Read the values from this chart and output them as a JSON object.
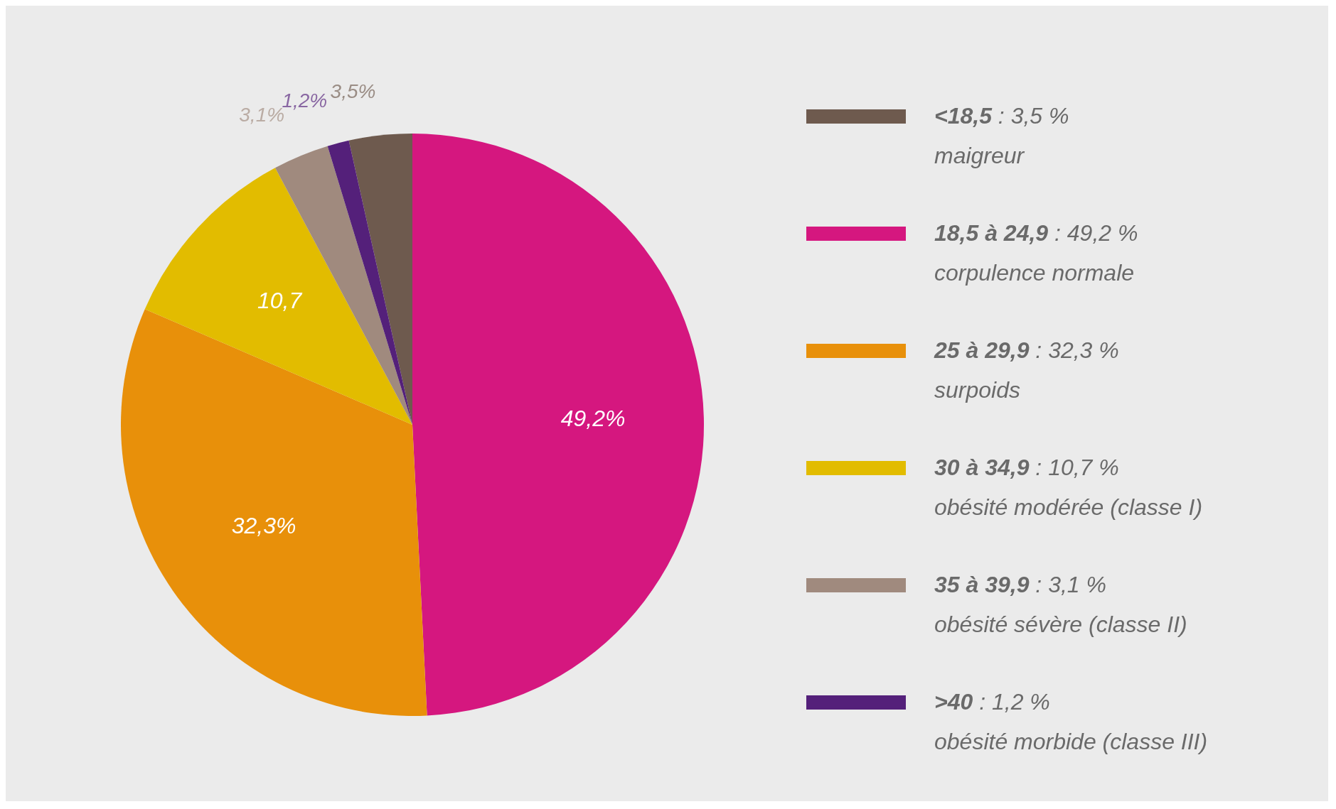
{
  "chart_data": {
    "type": "pie",
    "categories": [
      "<18,5 : 3,5 %\nmaigreur",
      "18,5 à 24,9 : 49,2 %\ncorpulence normale",
      "25 à 29,9 : 32,3 %\nsurpoids",
      "30 à 34,9 : 10,7 %\nobésité modérée (classe I)",
      "35 à 39,9 : 3,1 %\nobésité sévère (classe II)",
      ">40 : 1,2 %\nobésité morbide (classe III)"
    ],
    "values": [
      3.5,
      49.2,
      32.3,
      10.7,
      3.1,
      1.2
    ],
    "colors": [
      "#6e5a4e",
      "#d5177f",
      "#e8900a",
      "#e2bc00",
      "#a08a7e",
      "#54207a"
    ],
    "value_labels": [
      "3,5%",
      "49,2%",
      "32,3%",
      "10,7",
      "3,1%",
      "1,2%"
    ],
    "legend": "right"
  }
}
